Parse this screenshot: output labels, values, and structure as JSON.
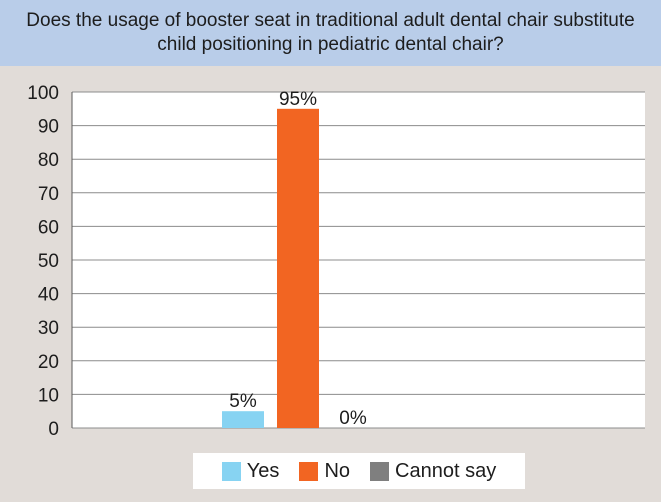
{
  "title": "Does the usage of booster seat in traditional adult dental chair substitute child positioning in pediatric dental chair?",
  "colors": {
    "yes": "#87d3f2",
    "no": "#f26522",
    "cannot_say": "#7f7f7f",
    "header_bg": "#b9cde9",
    "page_bg": "#e1dcd8"
  },
  "legend": [
    {
      "label": "Yes",
      "color": "#87d3f2"
    },
    {
      "label": "No",
      "color": "#f26522"
    },
    {
      "label": "Cannot say",
      "color": "#7f7f7f"
    }
  ],
  "chart_data": {
    "type": "bar",
    "title": "Does the usage of booster seat in traditional adult dental chair substitute child positioning in pediatric dental chair?",
    "series": [
      {
        "name": "Yes",
        "value": 5,
        "label": "5%",
        "color": "#87d3f2"
      },
      {
        "name": "No",
        "value": 95,
        "label": "95%",
        "color": "#f26522"
      },
      {
        "name": "Cannot say",
        "value": 0,
        "label": "0%",
        "color": "#7f7f7f"
      }
    ],
    "ylim": [
      0,
      100
    ],
    "yticks": [
      0,
      10,
      20,
      30,
      40,
      50,
      60,
      70,
      80,
      90,
      100
    ],
    "xlabel": "",
    "ylabel": "",
    "grid": true,
    "legend_position": "bottom"
  }
}
